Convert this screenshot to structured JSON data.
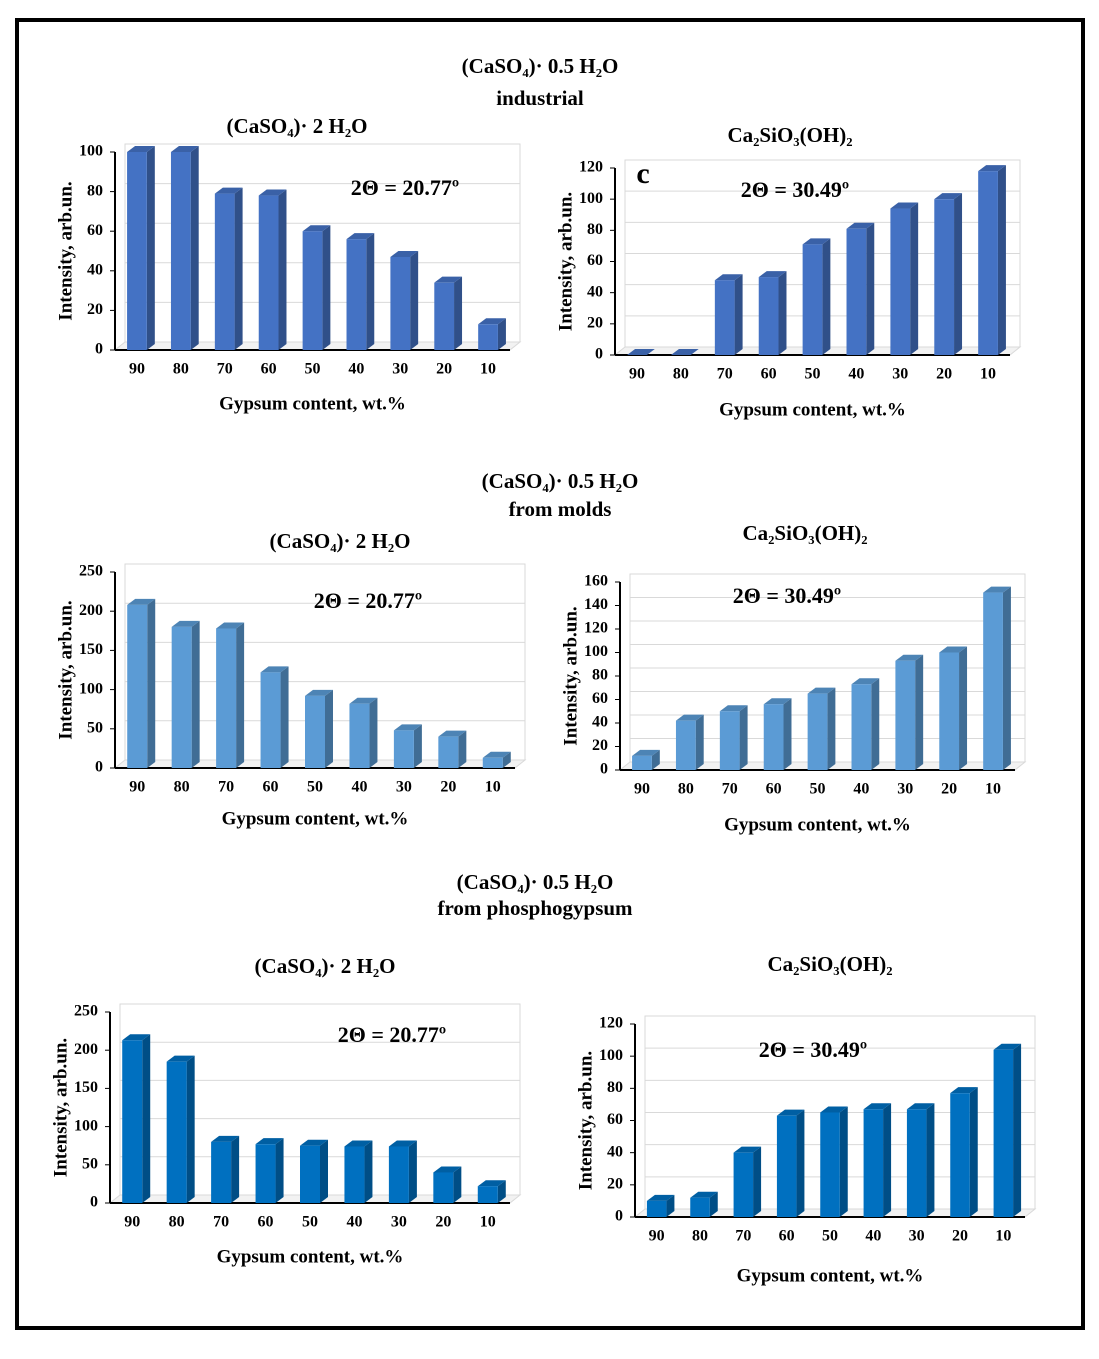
{
  "sections": [
    {
      "title": "(CaSO₄)· 0.5 H₂O",
      "subtitle": "industrial"
    },
    {
      "title": "(CaSO₄)· 0.5 H₂O",
      "subtitle": "from molds"
    },
    {
      "title": "(CaSO₄)· 0.5 H₂O",
      "subtitle": "from phosphogypsum"
    }
  ],
  "chart_data": [
    {
      "type": "bar",
      "title": "(CaSO₄)· 2 H₂O",
      "annotation": "2Θ = 20.77º",
      "x_label": "Gypsum content, wt.%",
      "y_label": "Intensity, arb.un.",
      "categories": [
        "90",
        "80",
        "70",
        "60",
        "50",
        "40",
        "30",
        "20",
        "10"
      ],
      "values": [
        100,
        100,
        79,
        78,
        60,
        56,
        47,
        34,
        13
      ],
      "color": "#4472c4",
      "ylim": [
        0,
        100
      ],
      "yticks": [
        0,
        20,
        40,
        60,
        80,
        100
      ],
      "grid": true
    },
    {
      "type": "bar",
      "title": "Ca₂SiO₃(OH)₂",
      "annotation": "2Θ = 30.49º",
      "panel_label": "c",
      "x_label": "Gypsum content, wt.%",
      "y_label": "Intensity, arb.un.",
      "categories": [
        "90",
        "80",
        "70",
        "60",
        "50",
        "40",
        "30",
        "20",
        "10"
      ],
      "values": [
        0,
        0,
        48,
        50,
        71,
        81,
        94,
        100,
        118
      ],
      "color": "#4472c4",
      "ylim": [
        0,
        120
      ],
      "yticks": [
        0,
        20,
        40,
        60,
        80,
        100,
        120
      ],
      "grid": true
    },
    {
      "type": "bar",
      "title": "(CaSO₄)· 2 H₂O",
      "annotation": "2Θ = 20.77º",
      "x_label": "Gypsum content, wt.%",
      "y_label": "Intensity, arb.un.",
      "categories": [
        "90",
        "80",
        "70",
        "60",
        "50",
        "40",
        "30",
        "20",
        "10"
      ],
      "values": [
        208,
        180,
        178,
        122,
        92,
        82,
        48,
        40,
        13
      ],
      "color": "#5b9bd5",
      "ylim": [
        0,
        250
      ],
      "yticks": [
        0,
        50,
        100,
        150,
        200,
        250
      ],
      "grid": true
    },
    {
      "type": "bar",
      "title": "Ca₂SiO₃(OH)₂",
      "annotation": "2Θ = 30.49º",
      "x_label": "Gypsum content, wt.%",
      "y_label": "Intensity, arb.un.",
      "categories": [
        "90",
        "80",
        "70",
        "60",
        "50",
        "40",
        "30",
        "20",
        "10"
      ],
      "values": [
        12,
        42,
        50,
        56,
        65,
        73,
        93,
        100,
        151
      ],
      "color": "#5b9bd5",
      "ylim": [
        0,
        160
      ],
      "yticks": [
        0,
        20,
        40,
        60,
        80,
        100,
        120,
        140,
        160
      ],
      "grid": true
    },
    {
      "type": "bar",
      "title": "(CaSO₄)· 2 H₂O",
      "annotation": "2Θ = 20.77º",
      "x_label": "Gypsum content, wt.%",
      "y_label": "Intensity, arb.un.",
      "categories": [
        "90",
        "80",
        "70",
        "60",
        "50",
        "40",
        "30",
        "20",
        "10"
      ],
      "values": [
        213,
        185,
        80,
        77,
        75,
        74,
        74,
        40,
        22
      ],
      "color": "#0070c0",
      "ylim": [
        0,
        250
      ],
      "yticks": [
        0,
        50,
        100,
        150,
        200,
        250
      ],
      "grid": true
    },
    {
      "type": "bar",
      "title": "Ca₂SiO₃(OH)₂",
      "annotation": "2Θ = 30.49º",
      "x_label": "Gypsum content, wt.%",
      "y_label": "Intensity, arb.un.",
      "categories": [
        "90",
        "80",
        "70",
        "60",
        "50",
        "40",
        "30",
        "20",
        "10"
      ],
      "values": [
        10,
        12,
        40,
        63,
        65,
        67,
        67,
        77,
        104
      ],
      "color": "#0070c0",
      "ylim": [
        0,
        120
      ],
      "yticks": [
        0,
        20,
        40,
        60,
        80,
        100,
        120
      ],
      "grid": true
    }
  ]
}
